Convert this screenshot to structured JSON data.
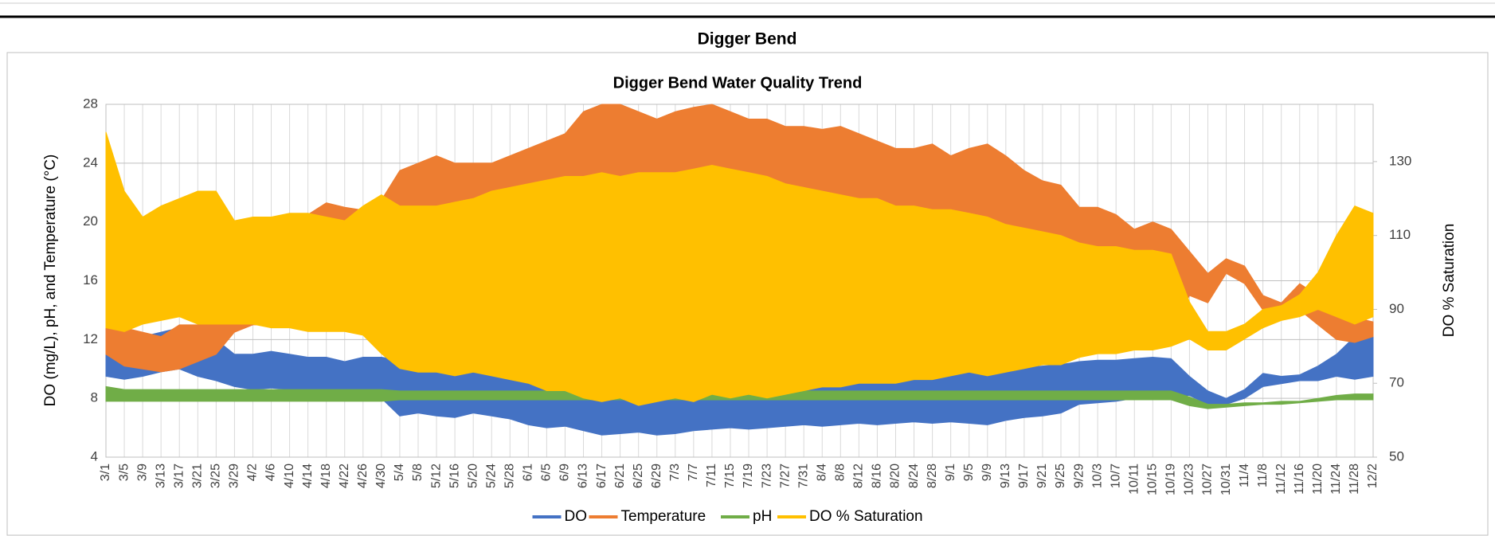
{
  "header": {
    "title": "Digger Bend"
  },
  "chart_data": {
    "type": "band",
    "title": "Digger Bend Water Quality Trend",
    "y_label": "DO (mg/L), pH, and Temperature (°C)",
    "y2_label": "DO % Saturation",
    "categories": [
      "3/1",
      "3/5",
      "3/9",
      "3/13",
      "3/17",
      "3/21",
      "3/25",
      "3/29",
      "4/2",
      "4/6",
      "4/10",
      "4/14",
      "4/18",
      "4/22",
      "4/26",
      "4/30",
      "5/4",
      "5/8",
      "5/12",
      "5/16",
      "5/20",
      "5/24",
      "5/28",
      "6/1",
      "6/5",
      "6/9",
      "6/13",
      "6/17",
      "6/21",
      "6/25",
      "6/29",
      "7/3",
      "7/7",
      "7/11",
      "7/15",
      "7/19",
      "7/23",
      "7/27",
      "7/31",
      "8/4",
      "8/8",
      "8/12",
      "8/16",
      "8/20",
      "8/24",
      "8/28",
      "9/1",
      "9/5",
      "9/9",
      "9/13",
      "9/17",
      "9/21",
      "9/25",
      "9/29",
      "10/3",
      "10/7",
      "10/11",
      "10/15",
      "10/19",
      "10/23",
      "10/27",
      "10/31",
      "11/4",
      "11/8",
      "11/12",
      "11/16",
      "11/20",
      "11/24",
      "11/28",
      "12/2"
    ],
    "ylim": [
      4,
      28
    ],
    "yticks": [
      4,
      8,
      12,
      16,
      20,
      24,
      28
    ],
    "y2lim": [
      50,
      145.5
    ],
    "y2ticks": [
      50,
      70,
      90,
      110,
      130
    ],
    "grid": true,
    "legend": "bottom",
    "series": [
      {
        "name": "DO",
        "color": "#4472c4",
        "low": [
          9.5,
          9.3,
          9.5,
          9.8,
          10,
          9.5,
          9.2,
          8.8,
          8.6,
          8.7,
          8.6,
          8.5,
          8.3,
          8.2,
          8.4,
          8,
          6.8,
          7,
          6.8,
          6.7,
          7,
          6.8,
          6.6,
          6.2,
          6,
          6.1,
          5.8,
          5.5,
          5.6,
          5.7,
          5.5,
          5.6,
          5.8,
          5.9,
          6,
          5.9,
          6,
          6.1,
          6.2,
          6.1,
          6.2,
          6.3,
          6.2,
          6.3,
          6.4,
          6.3,
          6.4,
          6.3,
          6.2,
          6.5,
          6.7,
          6.8,
          7,
          7.6,
          7.7,
          7.8,
          8,
          8.1,
          8.2,
          8.2,
          7.6,
          7.6,
          8,
          8.8,
          9,
          9.2,
          9.2,
          9.5,
          9.3,
          9.5
        ],
        "high": [
          12.5,
          12.3,
          12.2,
          12.5,
          12.8,
          12.3,
          12,
          11,
          11,
          11.2,
          11,
          10.8,
          10.8,
          10.5,
          10.8,
          10.8,
          10.6,
          10.3,
          10.2,
          10.3,
          10.5,
          10.6,
          10.2,
          10.3,
          10.1,
          10,
          9.8,
          9.5,
          9.6,
          9.5,
          9.4,
          9.6,
          9.7,
          9.6,
          9.8,
          9.6,
          9.7,
          9.6,
          9.8,
          9.6,
          9.7,
          9.8,
          9.7,
          9.8,
          9.9,
          10,
          10,
          9.9,
          9.8,
          10,
          10.1,
          10.2,
          10.3,
          10.5,
          10.6,
          10.6,
          10.7,
          10.8,
          10.7,
          9.5,
          8.5,
          8,
          8.6,
          9.7,
          9.5,
          9.6,
          10.2,
          11,
          12.2,
          12.3
        ]
      },
      {
        "name": "Temperature",
        "color": "#ed7d31",
        "low": [
          11,
          10.2,
          10,
          9.8,
          10,
          10.5,
          11,
          12.5,
          13,
          13,
          13.5,
          13.5,
          14,
          14.5,
          14.5,
          14.5,
          15,
          15.5,
          15.5,
          16,
          16,
          16.5,
          16.5,
          17,
          17,
          17.5,
          17.5,
          17.5,
          17.5,
          17.8,
          18,
          18,
          18,
          18,
          18,
          18,
          17.8,
          17.5,
          17,
          17,
          17,
          16.8,
          16.8,
          16.5,
          16.5,
          16,
          16,
          15.8,
          15.5,
          15.2,
          15,
          14.5,
          14,
          13.5,
          13,
          13,
          12.8,
          12.5,
          12.5,
          15,
          14.5,
          16.5,
          15.8,
          14,
          13.5,
          14,
          13,
          12,
          11.8,
          12.2
        ],
        "high": [
          14,
          12.8,
          12.5,
          12.2,
          13,
          13,
          13,
          19.5,
          20,
          19.8,
          20,
          20.5,
          21.3,
          21,
          20.8,
          21.5,
          23.5,
          24,
          24.5,
          24,
          24,
          24,
          24.5,
          25,
          25.5,
          26,
          27.5,
          28,
          28,
          27.5,
          27,
          27.5,
          27.8,
          28,
          27.5,
          27,
          27,
          26.5,
          26.5,
          26.3,
          26.5,
          26,
          25.5,
          25,
          25,
          25.3,
          24.5,
          25,
          25.3,
          24.5,
          23.5,
          22.8,
          22.5,
          21,
          21,
          20.5,
          19.5,
          20,
          19.5,
          18,
          16.5,
          17.5,
          17,
          15,
          14.5,
          15.8,
          15,
          14.5,
          13.5,
          13.2
        ]
      },
      {
        "name": "pH",
        "color": "#70ad47",
        "low": [
          7.8,
          7.8,
          7.8,
          7.8,
          7.8,
          7.8,
          7.8,
          7.8,
          7.8,
          7.8,
          7.8,
          7.8,
          7.8,
          7.8,
          7.8,
          7.8,
          7.9,
          7.9,
          7.9,
          7.9,
          7.9,
          7.9,
          7.9,
          7.9,
          7.9,
          7.9,
          7.9,
          7.9,
          7.9,
          7.9,
          7.9,
          7.9,
          7.9,
          7.9,
          7.9,
          7.9,
          7.9,
          7.9,
          7.9,
          7.9,
          7.9,
          7.9,
          7.9,
          7.9,
          7.9,
          7.9,
          7.9,
          7.9,
          7.9,
          7.9,
          7.9,
          7.9,
          7.9,
          7.9,
          7.9,
          7.9,
          7.9,
          7.9,
          7.9,
          7.5,
          7.3,
          7.4,
          7.5,
          7.6,
          7.6,
          7.7,
          7.8,
          7.9,
          7.9,
          7.9
        ],
        "high": [
          8.8,
          8.6,
          8.6,
          8.6,
          8.6,
          8.6,
          8.6,
          8.6,
          8.6,
          8.6,
          8.6,
          8.6,
          8.6,
          8.6,
          8.6,
          8.6,
          8.5,
          8.5,
          8.5,
          8.5,
          8.5,
          8.5,
          8.5,
          8.5,
          8.5,
          8.5,
          8.5,
          8.5,
          8.5,
          8.5,
          8.5,
          8.5,
          8.5,
          8.5,
          8.5,
          8.5,
          8.5,
          8.5,
          8.5,
          8.5,
          8.5,
          8.5,
          8.5,
          8.5,
          8.5,
          8.5,
          8.5,
          8.5,
          8.5,
          8.5,
          8.5,
          8.5,
          8.5,
          8.5,
          8.5,
          8.5,
          8.5,
          8.5,
          8.5,
          8.1,
          7.6,
          7.6,
          7.7,
          7.7,
          7.8,
          7.8,
          8,
          8.2,
          8.3,
          8.3
        ]
      },
      {
        "name": "DO % Saturation",
        "color": "#ffc000",
        "axis": "y2",
        "low": [
          85,
          84,
          86,
          87,
          88,
          86,
          86,
          86,
          86,
          85,
          85,
          84,
          84,
          84,
          83,
          78,
          74,
          73,
          73,
          72,
          73,
          72,
          71,
          70,
          68,
          68,
          66,
          65,
          66,
          64,
          65,
          66,
          65,
          67,
          66,
          67,
          66,
          67,
          68,
          69,
          69,
          70,
          70,
          70,
          71,
          71,
          72,
          73,
          72,
          73,
          74,
          75,
          75,
          77,
          78,
          78,
          79,
          79,
          80,
          82,
          79,
          79,
          82,
          85,
          87,
          88,
          90,
          88,
          86,
          88
        ],
        "high": [
          138,
          122,
          115,
          118,
          120,
          122,
          122,
          114,
          115,
          115,
          116,
          116,
          115,
          114,
          118,
          121,
          118,
          118,
          118,
          119,
          120,
          122,
          123,
          124,
          125,
          126,
          126,
          127,
          126,
          127,
          127,
          127,
          128,
          129,
          128,
          127,
          126,
          124,
          123,
          122,
          121,
          120,
          120,
          118,
          118,
          117,
          117,
          116,
          115,
          113,
          112,
          111,
          110,
          108,
          107,
          107,
          106,
          106,
          105,
          92,
          84,
          84,
          86,
          90,
          91,
          94,
          100,
          110,
          118,
          116
        ]
      }
    ]
  }
}
